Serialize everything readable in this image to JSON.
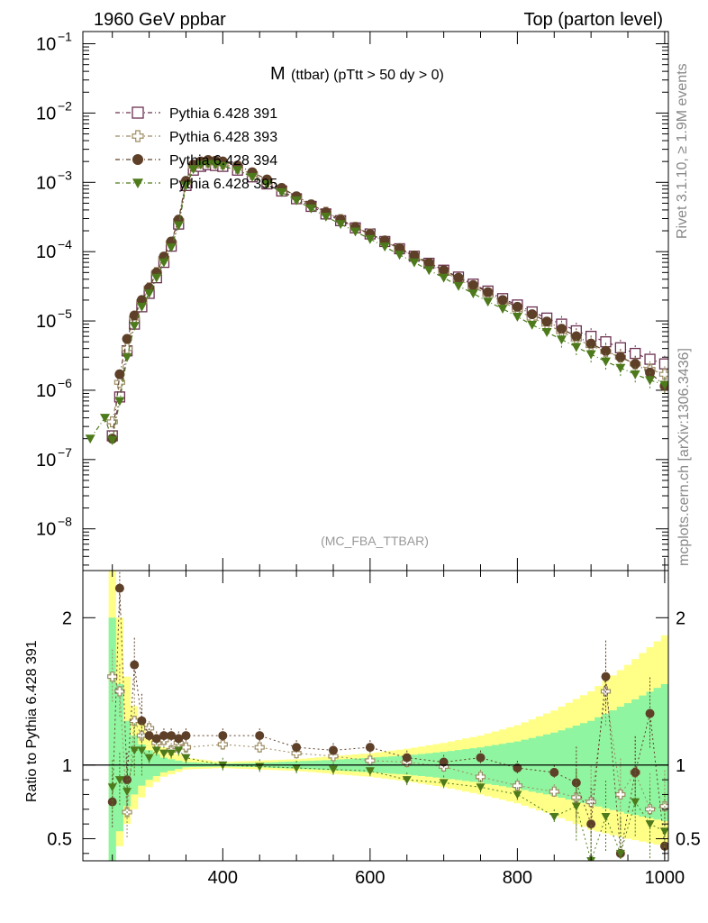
{
  "header": {
    "left": "1960 GeV ppbar",
    "right": "Top (parton level)"
  },
  "title": {
    "main": "M",
    "sub": "(ttbar) (pTtt > 50 dy > 0)"
  },
  "side_labels": {
    "rivet": "Rivet 3.1.10, ≥ 1.9M events",
    "mcplots": "mcplots.cern.ch [arXiv:1306.3436]"
  },
  "analysis_label": "(MC_FBA_TTBAR)",
  "colors": {
    "s391": "#6b3050",
    "s393": "#9d8b63",
    "s394": "#5e4029",
    "s395": "#4d7a1b",
    "band_yellow": "#ffff88",
    "band_green": "#90f5a0"
  },
  "chart_data": [
    {
      "type": "scatter",
      "panel": "main",
      "log_y": true,
      "xlim": [
        210,
        1005
      ],
      "ylim": [
        2.5e-09,
        0.15
      ],
      "yticks": [
        {
          "value": 1e-08,
          "label": "10",
          "exp": "−8"
        },
        {
          "value": 1e-07,
          "label": "10",
          "exp": "−7"
        },
        {
          "value": 1e-06,
          "label": "10",
          "exp": "−6"
        },
        {
          "value": 1e-05,
          "label": "10",
          "exp": "−5"
        },
        {
          "value": 0.0001,
          "label": "10",
          "exp": "−4"
        },
        {
          "value": 0.001,
          "label": "10",
          "exp": "−3"
        },
        {
          "value": 0.01,
          "label": "10",
          "exp": "−2"
        },
        {
          "value": 0.1,
          "label": "10",
          "exp": "−1"
        }
      ],
      "series": [
        {
          "name": "Pythia 6.428 391",
          "marker": "square-open",
          "x": [
            250,
            260,
            270,
            280,
            290,
            300,
            310,
            320,
            330,
            340,
            350,
            360,
            370,
            380,
            390,
            400,
            420,
            440,
            460,
            480,
            500,
            520,
            540,
            560,
            580,
            600,
            620,
            640,
            660,
            680,
            700,
            720,
            740,
            760,
            780,
            800,
            820,
            840,
            860,
            880,
            900,
            920,
            940,
            960,
            980,
            1000
          ],
          "y": [
            2.2e-07,
            8e-07,
            3.7e-06,
            9e-06,
            1.6e-05,
            2.5e-05,
            4.2e-05,
            7e-05,
            0.00012,
            0.00025,
            0.0009,
            0.0015,
            0.0017,
            0.0018,
            0.00175,
            0.0017,
            0.0015,
            0.0012,
            0.00095,
            0.00075,
            0.00058,
            0.00045,
            0.00035,
            0.00028,
            0.00022,
            0.00018,
            0.00014,
            0.00011,
            8.6e-05,
            6.8e-05,
            5.4e-05,
            4.3e-05,
            3.4e-05,
            2.7e-05,
            2.1e-05,
            1.7e-05,
            1.35e-05,
            1.1e-05,
            9e-06,
            7.2e-06,
            6e-06,
            5e-06,
            4.1e-06,
            3.4e-06,
            2.8e-06,
            2.4e-06
          ]
        },
        {
          "name": "Pythia 6.428 393",
          "marker": "cross-open",
          "x": [
            250,
            260,
            270,
            280,
            290,
            300,
            310,
            320,
            330,
            340,
            350,
            360,
            370,
            380,
            390,
            400,
            420,
            440,
            460,
            480,
            500,
            520,
            540,
            560,
            580,
            600,
            620,
            640,
            660,
            680,
            700,
            720,
            740,
            760,
            780,
            800,
            820,
            840,
            860,
            880,
            900,
            920,
            940,
            960,
            980,
            1000
          ],
          "y": [
            3.5e-07,
            1.3e-06,
            4e-06,
            1.1e-05,
            1.9e-05,
            3e-05,
            5e-05,
            8e-05,
            0.000135,
            0.00028,
            0.001,
            0.0017,
            0.0019,
            0.00195,
            0.0019,
            0.00185,
            0.0016,
            0.0013,
            0.001,
            0.0008,
            0.00061,
            0.00047,
            0.00037,
            0.00029,
            0.000225,
            0.00018,
            0.00014,
            0.00011,
            8.5e-05,
            6.6e-05,
            5.1e-05,
            4e-05,
            3.1e-05,
            2.4e-05,
            1.9e-05,
            1.45e-05,
            1.1e-05,
            9e-06,
            7e-06,
            5.5e-06,
            4.4e-06,
            3.6e-06,
            3e-06,
            2.4e-06,
            2e-06,
            1.7e-06
          ]
        },
        {
          "name": "Pythia 6.428 394",
          "marker": "circle-filled",
          "x": [
            250,
            260,
            270,
            280,
            290,
            300,
            310,
            320,
            330,
            340,
            350,
            360,
            370,
            380,
            390,
            400,
            420,
            440,
            460,
            480,
            500,
            520,
            540,
            560,
            580,
            600,
            620,
            640,
            660,
            680,
            700,
            720,
            740,
            760,
            780,
            800,
            820,
            840,
            860,
            880,
            900,
            920,
            940,
            960,
            980,
            1000
          ],
          "y": [
            2e-07,
            1.7e-06,
            5.5e-06,
            1.2e-05,
            2e-05,
            3e-05,
            5e-05,
            8.5e-05,
            0.00014,
            0.00029,
            0.00105,
            0.0018,
            0.002,
            0.0021,
            0.00205,
            0.002,
            0.00175,
            0.0014,
            0.0011,
            0.00083,
            0.00063,
            0.00048,
            0.00037,
            0.00029,
            0.000225,
            0.00018,
            0.000145,
            0.000112,
            8.8e-05,
            6.9e-05,
            5.4e-05,
            4.2e-05,
            3.3e-05,
            2.6e-05,
            2e-05,
            1.6e-05,
            1.25e-05,
            9.8e-06,
            7.7e-06,
            6e-06,
            4.7e-06,
            3.7e-06,
            3e-06,
            2.4e-06,
            1.8e-06,
            1.15e-06
          ]
        },
        {
          "name": "Pythia 6.428 395",
          "marker": "triangle-down-filled",
          "x": [
            220,
            240,
            250,
            260,
            270,
            280,
            290,
            300,
            310,
            320,
            330,
            340,
            350,
            360,
            370,
            380,
            390,
            400,
            420,
            440,
            460,
            480,
            500,
            520,
            540,
            560,
            580,
            600,
            620,
            640,
            660,
            680,
            700,
            720,
            740,
            760,
            780,
            800,
            820,
            840,
            860,
            880,
            900,
            920,
            940,
            960,
            980,
            1000
          ],
          "y": [
            2e-07,
            4e-07,
            1.9e-07,
            7e-07,
            3e-06,
            8.5e-06,
            1.6e-05,
            2.5e-05,
            4.2e-05,
            7e-05,
            0.000115,
            0.00024,
            0.0009,
            0.00155,
            0.0018,
            0.00185,
            0.0018,
            0.00172,
            0.0015,
            0.0012,
            0.00094,
            0.00072,
            0.00055,
            0.00042,
            0.00032,
            0.00025,
            0.000195,
            0.000152,
            0.000118,
            9e-05,
            7e-05,
            5.4e-05,
            4.2e-05,
            3.2e-05,
            2.5e-05,
            1.9e-05,
            1.5e-05,
            1.15e-05,
            8.8e-06,
            6.9e-06,
            5.4e-06,
            4.2e-06,
            3.3e-06,
            2.6e-06,
            2.1e-06,
            1.7e-06,
            1.4e-06,
            1.2e-06
          ]
        }
      ]
    },
    {
      "type": "scatter",
      "panel": "ratio",
      "ylabel": "Ratio to Pythia 6.428 391",
      "xlim": [
        210,
        1005
      ],
      "ylim": [
        0.35,
        2.32
      ],
      "xticks": [
        400,
        600,
        800,
        1000
      ],
      "yticks": [
        0.5,
        1,
        2
      ],
      "reference_line": 1,
      "band": {
        "x": [
          250,
          260,
          270,
          280,
          290,
          300,
          320,
          350,
          400,
          450,
          500,
          550,
          600,
          650,
          700,
          750,
          800,
          850,
          900,
          950,
          1000
        ],
        "yellow_lo": [
          0.35,
          0.45,
          0.6,
          0.7,
          0.78,
          0.85,
          0.92,
          0.97,
          0.98,
          0.97,
          0.96,
          0.94,
          0.92,
          0.89,
          0.85,
          0.8,
          0.74,
          0.66,
          0.56,
          0.5,
          0.45
        ],
        "yellow_hi": [
          2.32,
          2.0,
          1.6,
          1.4,
          1.3,
          1.22,
          1.12,
          1.05,
          1.02,
          1.03,
          1.04,
          1.06,
          1.08,
          1.11,
          1.15,
          1.2,
          1.27,
          1.37,
          1.5,
          1.68,
          1.88
        ],
        "green_lo": [
          0.35,
          0.55,
          0.72,
          0.8,
          0.86,
          0.9,
          0.95,
          0.985,
          0.99,
          0.985,
          0.975,
          0.965,
          0.95,
          0.935,
          0.91,
          0.88,
          0.84,
          0.79,
          0.73,
          0.67,
          0.62
        ],
        "green_hi": [
          2.0,
          1.55,
          1.3,
          1.2,
          1.14,
          1.1,
          1.05,
          1.02,
          1.01,
          1.015,
          1.025,
          1.035,
          1.05,
          1.065,
          1.09,
          1.12,
          1.16,
          1.22,
          1.3,
          1.42,
          1.55
        ]
      },
      "series": [
        {
          "name": "Pythia 6.428 393",
          "marker": "cross-open",
          "x": [
            250,
            260,
            270,
            280,
            290,
            300,
            310,
            320,
            330,
            340,
            350,
            400,
            450,
            500,
            550,
            600,
            650,
            700,
            750,
            800,
            850,
            880,
            900,
            920,
            940,
            960,
            980,
            1000
          ],
          "y": [
            1.6,
            1.5,
            0.68,
            1.3,
            1.2,
            1.25,
            1.15,
            1.17,
            1.1,
            1.15,
            1.12,
            1.14,
            1.12,
            1.08,
            1.06,
            1.03,
            1.02,
            0.99,
            0.92,
            0.86,
            0.82,
            0.78,
            0.75,
            1.5,
            0.8,
            0.95,
            0.7,
            0.72
          ]
        },
        {
          "name": "Pythia 6.428 394",
          "marker": "circle-filled",
          "x": [
            250,
            260,
            270,
            280,
            290,
            300,
            310,
            320,
            330,
            340,
            350,
            400,
            450,
            500,
            550,
            600,
            650,
            700,
            750,
            800,
            850,
            880,
            900,
            920,
            940,
            960,
            980,
            1000
          ],
          "y": [
            0.75,
            2.2,
            0.9,
            1.68,
            1.3,
            1.2,
            1.18,
            1.2,
            1.2,
            1.18,
            1.2,
            1.2,
            1.2,
            1.12,
            1.1,
            1.12,
            1.05,
            1.02,
            1.05,
            0.98,
            0.95,
            0.88,
            0.6,
            1.6,
            0.4,
            0.95,
            1.35,
            0.45
          ]
        },
        {
          "name": "Pythia 6.428 395",
          "marker": "triangle-down-filled",
          "x": [
            250,
            260,
            270,
            280,
            290,
            300,
            310,
            320,
            330,
            340,
            350,
            400,
            450,
            500,
            550,
            600,
            650,
            700,
            750,
            800,
            850,
            880,
            900,
            920,
            940,
            960,
            980,
            1000
          ],
          "y": [
            0.85,
            0.9,
            0.82,
            1.1,
            1.1,
            1.05,
            1.1,
            1.08,
            1.08,
            1.1,
            1.05,
            1.0,
            0.99,
            0.98,
            0.97,
            0.96,
            0.9,
            0.88,
            0.85,
            0.8,
            0.65,
            0.72,
            0.35,
            0.65,
            0.4,
            0.75,
            0.6,
            0.55
          ]
        }
      ]
    }
  ]
}
